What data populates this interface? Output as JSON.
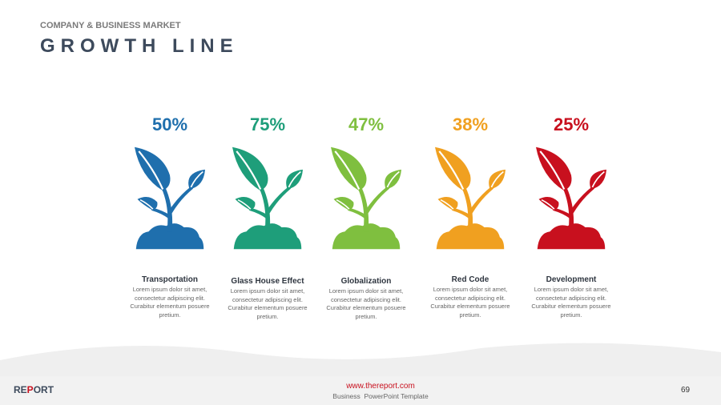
{
  "header": {
    "subtitle": "COMPANY & BUSINESS MARKET",
    "title": "GROWTH LINE"
  },
  "items": [
    {
      "percent": "50%",
      "title": "Transportation",
      "body": "Lorem ipsum dolor sit amet, consectetur adipiscing elit. Curabitur elementum posuere pretium."
    },
    {
      "percent": "75%",
      "title": "Glass House Effect",
      "body": "Lorem ipsum dolor sit amet, consectetur adipiscing elit. Curabitur elementum posuere pretium."
    },
    {
      "percent": "47%",
      "title": "Globalization",
      "body": "Lorem ipsum dolor sit amet, consectetur adipiscing elit. Curabitur elementum posuere pretium."
    },
    {
      "percent": "38%",
      "title": "Red Code",
      "body": "Lorem ipsum dolor sit amet, consectetur adipiscing elit. Curabitur elementum posuere pretium."
    },
    {
      "percent": "25%",
      "title": "Development",
      "body": "Lorem ipsum dolor sit amet, consectetur adipiscing elit. Curabitur elementum posuere pretium."
    }
  ],
  "footer": {
    "brand": "REPORT",
    "url": "www.thereport.com",
    "caption": "Business  PowerPoint Template",
    "page": "69"
  }
}
